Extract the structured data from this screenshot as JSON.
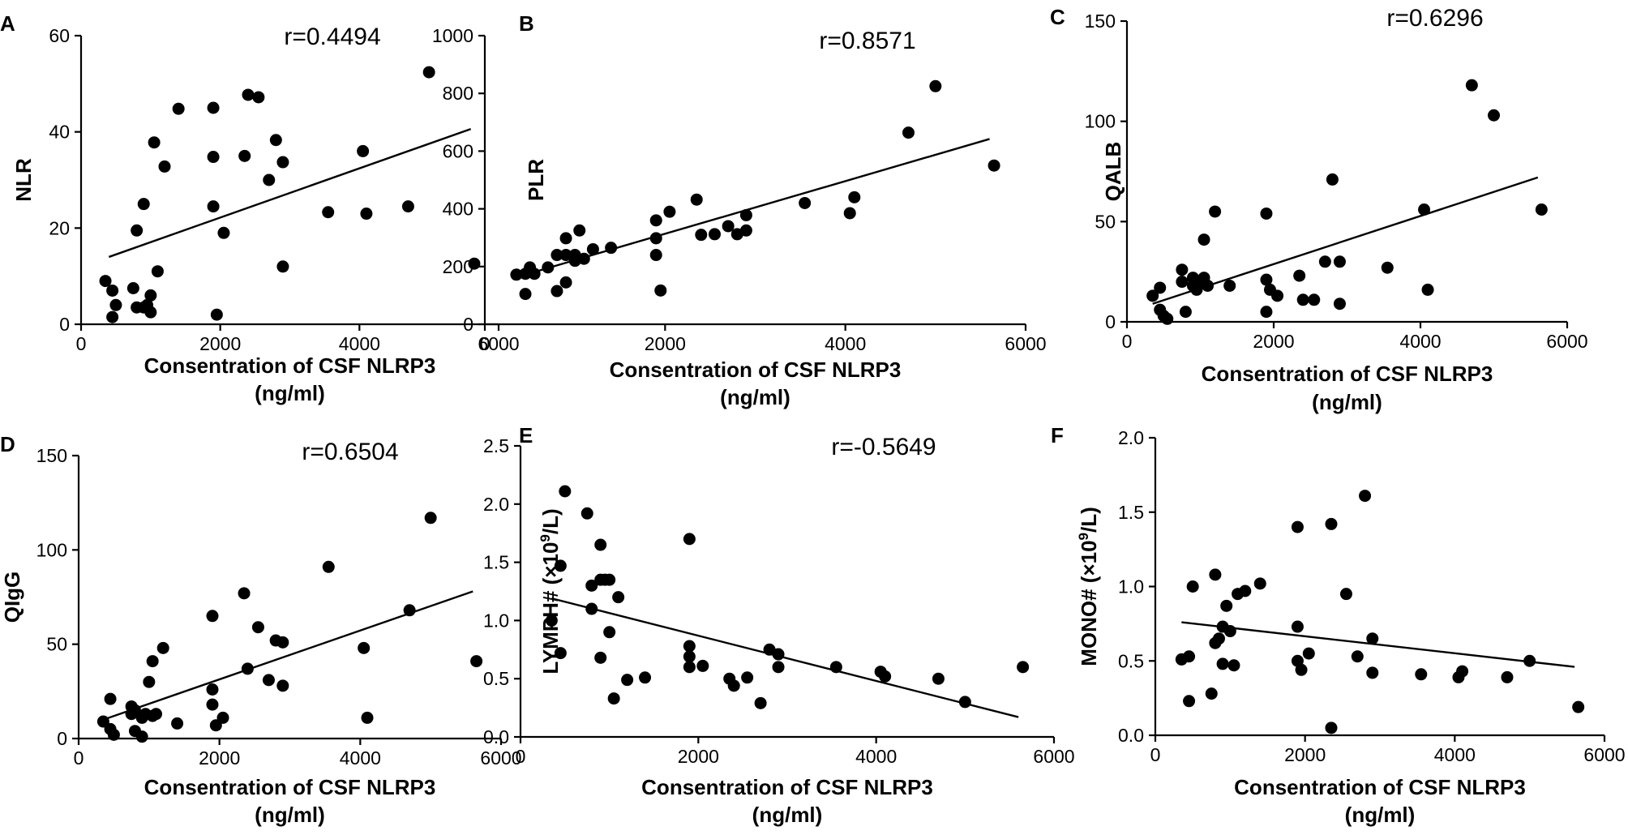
{
  "chart_data": [
    {
      "panel": "A",
      "type": "scatter",
      "xlabel": "Consentration of CSF NLRP3",
      "xunit": "(ng/ml)",
      "ylabel": "NLR",
      "ylabel_html": null,
      "xlim": [
        0,
        6000
      ],
      "ylim": [
        0,
        60
      ],
      "xticks": [
        0,
        2000,
        4000,
        6000
      ],
      "yticks": [
        0,
        20,
        40,
        60
      ],
      "ytick_labels": [
        "0",
        "20",
        "40",
        "60"
      ],
      "r": "r=0.4494",
      "fit": {
        "x": [
          400,
          5600
        ],
        "y": [
          14,
          40.6
        ]
      },
      "points": [
        [
          350,
          9
        ],
        [
          450,
          7
        ],
        [
          450,
          1.5
        ],
        [
          500,
          4
        ],
        [
          750,
          7.5
        ],
        [
          800,
          3.5
        ],
        [
          800,
          19.5
        ],
        [
          900,
          25
        ],
        [
          900,
          3.5
        ],
        [
          950,
          4
        ],
        [
          1000,
          6
        ],
        [
          1000,
          2.5
        ],
        [
          1050,
          37.8
        ],
        [
          1100,
          11
        ],
        [
          1200,
          32.8
        ],
        [
          1400,
          44.8
        ],
        [
          1900,
          45
        ],
        [
          1900,
          34.8
        ],
        [
          1900,
          24.5
        ],
        [
          1950,
          2
        ],
        [
          2050,
          19
        ],
        [
          2350,
          35
        ],
        [
          2400,
          47.7
        ],
        [
          2550,
          47.2
        ],
        [
          2700,
          30
        ],
        [
          2800,
          38.3
        ],
        [
          2900,
          33.7
        ],
        [
          2900,
          12
        ],
        [
          3550,
          23.3
        ],
        [
          4050,
          36
        ],
        [
          4100,
          23
        ],
        [
          4700,
          24.5
        ],
        [
          5000,
          52.4
        ],
        [
          5650,
          12.6
        ]
      ]
    },
    {
      "panel": "B",
      "type": "scatter",
      "xlabel": "Consentration of CSF NLRP3",
      "xunit": "(ng/ml)",
      "ylabel": "PLR",
      "xlim": [
        0,
        6000
      ],
      "ylim": [
        0,
        1000
      ],
      "xticks": [
        0,
        2000,
        4000,
        6000
      ],
      "yticks": [
        0,
        200,
        400,
        600,
        800,
        1000
      ],
      "ytick_labels": [
        "0",
        "200",
        "400",
        "600",
        "800",
        "1000"
      ],
      "r": "r=0.8571",
      "fit": {
        "x": [
          350,
          5600
        ],
        "y": [
          163,
          642
        ]
      },
      "points": [
        [
          350,
          172
        ],
        [
          450,
          175
        ],
        [
          450,
          105
        ],
        [
          500,
          197
        ],
        [
          550,
          175
        ],
        [
          700,
          197
        ],
        [
          800,
          240
        ],
        [
          800,
          115
        ],
        [
          900,
          298
        ],
        [
          900,
          240
        ],
        [
          900,
          145
        ],
        [
          1000,
          220
        ],
        [
          1000,
          240
        ],
        [
          1050,
          325
        ],
        [
          1100,
          227
        ],
        [
          1200,
          260
        ],
        [
          1400,
          265
        ],
        [
          1900,
          360
        ],
        [
          1900,
          298
        ],
        [
          1900,
          240
        ],
        [
          1950,
          117
        ],
        [
          2050,
          390
        ],
        [
          2350,
          432
        ],
        [
          2400,
          310
        ],
        [
          2550,
          312
        ],
        [
          2700,
          340
        ],
        [
          2800,
          312
        ],
        [
          2900,
          378
        ],
        [
          2900,
          325
        ],
        [
          3550,
          420
        ],
        [
          4050,
          385
        ],
        [
          4100,
          440
        ],
        [
          4700,
          664
        ],
        [
          5000,
          825
        ],
        [
          5650,
          550
        ]
      ]
    },
    {
      "panel": "C",
      "type": "scatter",
      "xlabel": "Consentration of CSF NLRP3",
      "xunit": "(ng/ml)",
      "ylabel": "QALB",
      "xlim": [
        0,
        6000
      ],
      "ylim": [
        0,
        150
      ],
      "xticks": [
        0,
        2000,
        4000,
        6000
      ],
      "yticks": [
        0,
        50,
        100,
        150
      ],
      "ytick_labels": [
        "0",
        "50",
        "100",
        "150"
      ],
      "r": "r=0.6296",
      "fit": {
        "x": [
          350,
          5600
        ],
        "y": [
          9,
          72
        ]
      },
      "points": [
        [
          350,
          13
        ],
        [
          450,
          6
        ],
        [
          450,
          17
        ],
        [
          500,
          3
        ],
        [
          550,
          1.5
        ],
        [
          750,
          20
        ],
        [
          750,
          26
        ],
        [
          800,
          5
        ],
        [
          900,
          18
        ],
        [
          900,
          22
        ],
        [
          950,
          16
        ],
        [
          1000,
          20
        ],
        [
          1050,
          41
        ],
        [
          1050,
          22
        ],
        [
          1100,
          18
        ],
        [
          1200,
          55
        ],
        [
          1400,
          18
        ],
        [
          1900,
          54
        ],
        [
          1900,
          21
        ],
        [
          1900,
          5
        ],
        [
          1950,
          16
        ],
        [
          2050,
          13
        ],
        [
          2350,
          23
        ],
        [
          2400,
          11
        ],
        [
          2550,
          11
        ],
        [
          2700,
          30
        ],
        [
          2800,
          71
        ],
        [
          2900,
          30
        ],
        [
          2900,
          9
        ],
        [
          3550,
          27
        ],
        [
          4050,
          56
        ],
        [
          4100,
          16
        ],
        [
          4700,
          118
        ],
        [
          5000,
          103
        ],
        [
          5650,
          56
        ]
      ]
    },
    {
      "panel": "D",
      "type": "scatter",
      "xlabel": "Consentration of CSF NLRP3",
      "xunit": "(ng/ml)",
      "ylabel": "QIgG",
      "xlim": [
        0,
        6000
      ],
      "ylim": [
        0,
        150
      ],
      "xticks": [
        0,
        2000,
        4000,
        6000
      ],
      "yticks": [
        0,
        50,
        100,
        150
      ],
      "ytick_labels": [
        "0",
        "50",
        "100",
        "150"
      ],
      "r": "r=0.6504",
      "fit": {
        "x": [
          350,
          5600
        ],
        "y": [
          10,
          78
        ]
      },
      "points": [
        [
          350,
          9
        ],
        [
          450,
          21
        ],
        [
          450,
          5
        ],
        [
          500,
          2
        ],
        [
          750,
          13
        ],
        [
          750,
          17
        ],
        [
          800,
          4
        ],
        [
          800,
          15
        ],
        [
          900,
          11
        ],
        [
          900,
          1
        ],
        [
          950,
          13
        ],
        [
          1000,
          30
        ],
        [
          1050,
          41
        ],
        [
          1050,
          12
        ],
        [
          1100,
          13
        ],
        [
          1200,
          48
        ],
        [
          1400,
          8
        ],
        [
          1900,
          65
        ],
        [
          1900,
          26
        ],
        [
          1900,
          18
        ],
        [
          1950,
          7
        ],
        [
          2050,
          11
        ],
        [
          2350,
          77
        ],
        [
          2400,
          37
        ],
        [
          2550,
          59
        ],
        [
          2700,
          31
        ],
        [
          2800,
          52
        ],
        [
          2900,
          51
        ],
        [
          2900,
          28
        ],
        [
          3550,
          91
        ],
        [
          4050,
          48
        ],
        [
          4100,
          11
        ],
        [
          4700,
          68
        ],
        [
          5000,
          117
        ],
        [
          5650,
          41
        ]
      ]
    },
    {
      "panel": "E",
      "type": "scatter",
      "xlabel": "Consentration of CSF NLRP3",
      "xunit": "(ng/ml)",
      "ylabel": "LYMPH# (×10",
      "ylabel_sup": "9",
      "ylabel_tail": "/L)",
      "xlim": [
        0,
        6000
      ],
      "ylim": [
        0,
        2.5
      ],
      "xticks": [
        0,
        2000,
        4000,
        6000
      ],
      "yticks": [
        0,
        0.5,
        1.0,
        1.5,
        2.0,
        2.5
      ],
      "ytick_labels": [
        "0.0",
        "0.5",
        "1.0",
        "1.5",
        "2.0",
        "2.5"
      ],
      "r": "r=-0.5649",
      "fit": {
        "x": [
          350,
          5600
        ],
        "y": [
          1.19,
          0.17
        ]
      },
      "points": [
        [
          350,
          1.0
        ],
        [
          450,
          1.47
        ],
        [
          450,
          0.72
        ],
        [
          500,
          2.11
        ],
        [
          750,
          1.92
        ],
        [
          800,
          1.3
        ],
        [
          800,
          1.1
        ],
        [
          900,
          1.65
        ],
        [
          900,
          1.35
        ],
        [
          900,
          0.68
        ],
        [
          950,
          1.35
        ],
        [
          1000,
          1.35
        ],
        [
          1000,
          0.9
        ],
        [
          1050,
          0.33
        ],
        [
          1100,
          1.2
        ],
        [
          1200,
          0.49
        ],
        [
          1400,
          0.51
        ],
        [
          1900,
          1.7
        ],
        [
          1900,
          0.78
        ],
        [
          1900,
          0.69
        ],
        [
          1900,
          0.6
        ],
        [
          2050,
          0.61
        ],
        [
          2350,
          0.5
        ],
        [
          2400,
          0.44
        ],
        [
          2550,
          0.51
        ],
        [
          2700,
          0.29
        ],
        [
          2800,
          0.75
        ],
        [
          2900,
          0.71
        ],
        [
          2900,
          0.6
        ],
        [
          3550,
          0.6
        ],
        [
          4050,
          0.56
        ],
        [
          4100,
          0.52
        ],
        [
          4700,
          0.5
        ],
        [
          5000,
          0.3
        ],
        [
          5650,
          0.6
        ]
      ]
    },
    {
      "panel": "F",
      "type": "scatter",
      "xlabel": "Consentration of CSF NLRP3",
      "xunit": "(ng/ml)",
      "ylabel": "MONO# (×10",
      "ylabel_sup": "9",
      "ylabel_tail": "/L)",
      "xlim": [
        0,
        6000
      ],
      "ylim": [
        0,
        2.0
      ],
      "xticks": [
        0,
        2000,
        4000,
        6000
      ],
      "yticks": [
        0,
        0.5,
        1.0,
        1.5,
        2.0
      ],
      "ytick_labels": [
        "0.0",
        "0.5",
        "1.0",
        "1.5",
        "2.0"
      ],
      "r": "",
      "fit": {
        "x": [
          350,
          5600
        ],
        "y": [
          0.76,
          0.46
        ]
      },
      "points": [
        [
          350,
          0.51
        ],
        [
          450,
          0.53
        ],
        [
          450,
          0.23
        ],
        [
          500,
          1.0
        ],
        [
          750,
          0.28
        ],
        [
          800,
          0.62
        ],
        [
          800,
          1.08
        ],
        [
          850,
          0.65
        ],
        [
          900,
          0.48
        ],
        [
          900,
          0.73
        ],
        [
          950,
          0.87
        ],
        [
          1000,
          0.7
        ],
        [
          1050,
          0.47
        ],
        [
          1100,
          0.95
        ],
        [
          1200,
          0.97
        ],
        [
          1400,
          1.02
        ],
        [
          1900,
          1.4
        ],
        [
          1900,
          0.73
        ],
        [
          1900,
          0.5
        ],
        [
          1950,
          0.44
        ],
        [
          2050,
          0.55
        ],
        [
          2350,
          1.42
        ],
        [
          2350,
          0.05
        ],
        [
          2550,
          0.95
        ],
        [
          2700,
          0.53
        ],
        [
          2800,
          1.61
        ],
        [
          2900,
          0.65
        ],
        [
          2900,
          0.42
        ],
        [
          3550,
          0.41
        ],
        [
          4050,
          0.39
        ],
        [
          4100,
          0.43
        ],
        [
          4700,
          0.39
        ],
        [
          5000,
          0.5
        ],
        [
          5650,
          0.19
        ]
      ]
    }
  ]
}
